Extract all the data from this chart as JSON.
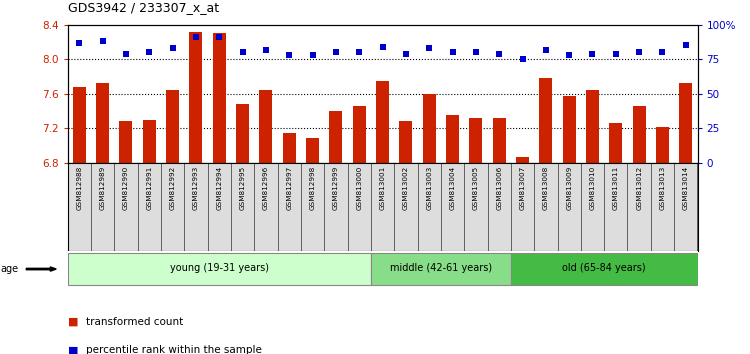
{
  "title": "GDS3942 / 233307_x_at",
  "samples": [
    "GSM812988",
    "GSM812989",
    "GSM812990",
    "GSM812991",
    "GSM812992",
    "GSM812993",
    "GSM812994",
    "GSM812995",
    "GSM812996",
    "GSM812997",
    "GSM812998",
    "GSM812999",
    "GSM813000",
    "GSM813001",
    "GSM813002",
    "GSM813003",
    "GSM813004",
    "GSM813005",
    "GSM813006",
    "GSM813007",
    "GSM813008",
    "GSM813009",
    "GSM813010",
    "GSM813011",
    "GSM813012",
    "GSM813013",
    "GSM813014"
  ],
  "transformed_count": [
    7.68,
    7.72,
    7.28,
    7.3,
    7.64,
    8.32,
    8.3,
    7.48,
    7.64,
    7.15,
    7.09,
    7.4,
    7.46,
    7.75,
    7.28,
    7.6,
    7.35,
    7.32,
    7.32,
    6.87,
    7.78,
    7.58,
    7.64,
    7.26,
    7.46,
    7.22,
    7.72
  ],
  "percentile_rank": [
    87,
    88,
    79,
    80,
    83,
    91,
    91,
    80,
    82,
    78,
    78,
    80,
    80,
    84,
    79,
    83,
    80,
    80,
    79,
    75,
    82,
    78,
    79,
    79,
    80,
    80,
    85
  ],
  "bar_color": "#cc2200",
  "dot_color": "#0000cc",
  "ylim_left": [
    6.8,
    8.4
  ],
  "ylim_right": [
    0,
    100
  ],
  "yticks_left": [
    6.8,
    7.2,
    7.6,
    8.0,
    8.4
  ],
  "yticks_right": [
    0,
    25,
    50,
    75,
    100
  ],
  "ytick_labels_right": [
    "0",
    "25",
    "50",
    "75",
    "100%"
  ],
  "groups": [
    {
      "label": "young (19-31 years)",
      "start": 0,
      "end": 13,
      "color": "#ccffcc"
    },
    {
      "label": "middle (42-61 years)",
      "start": 13,
      "end": 19,
      "color": "#88dd88"
    },
    {
      "label": "old (65-84 years)",
      "start": 19,
      "end": 27,
      "color": "#44bb44"
    }
  ],
  "age_label": "age",
  "legend_bar_label": "transformed count",
  "legend_dot_label": "percentile rank within the sample",
  "plot_bg_color": "#ffffff",
  "bar_bottom": 6.8,
  "grid_dotted_at": [
    8.0,
    7.6,
    7.2
  ],
  "xtick_bg": "#dddddd"
}
